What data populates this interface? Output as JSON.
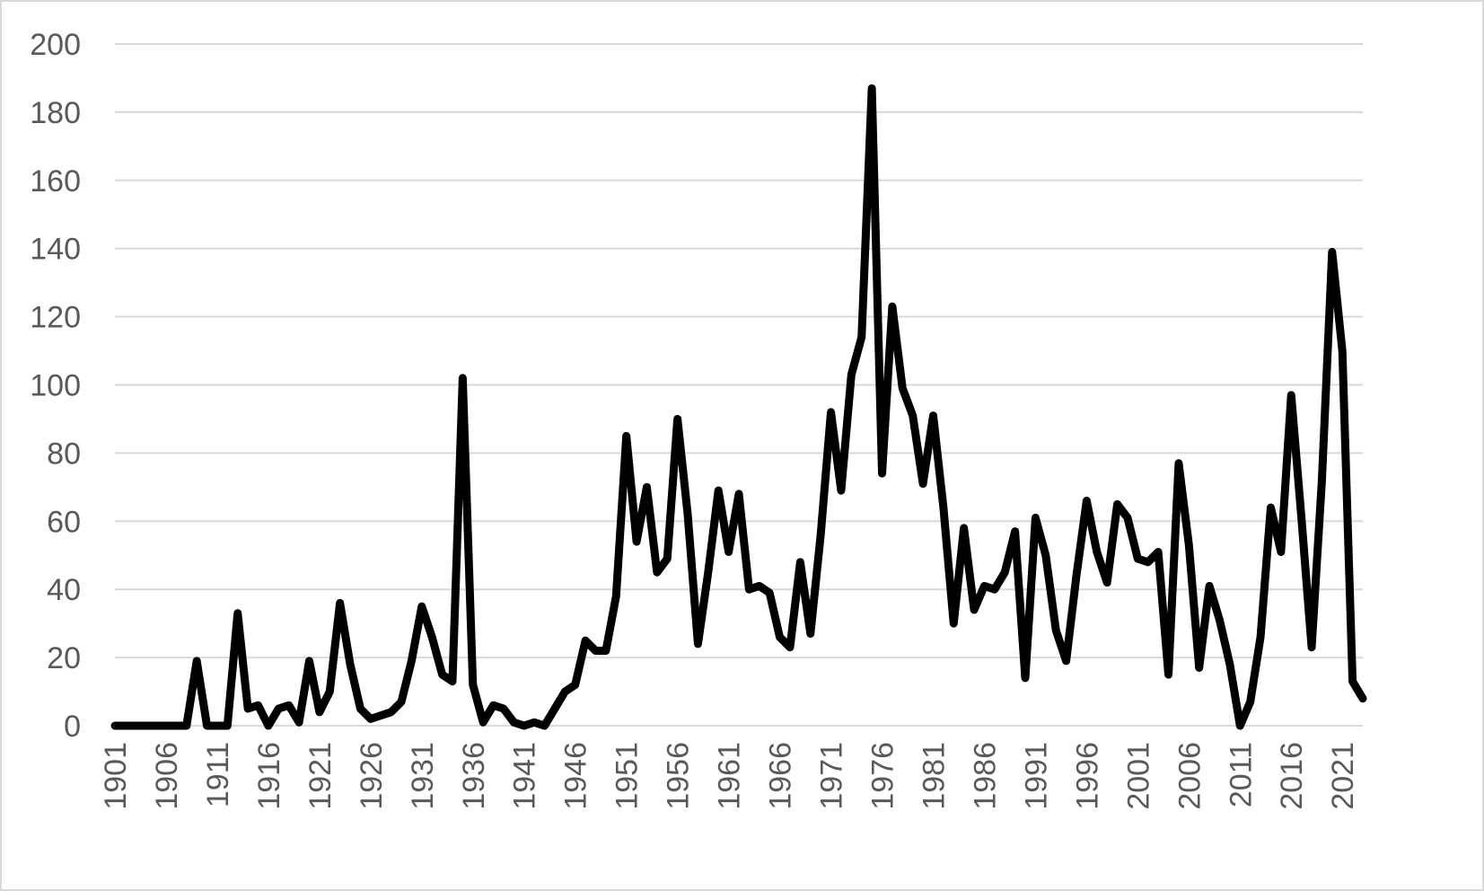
{
  "chart_data": {
    "type": "line",
    "title": "",
    "xlabel": "",
    "ylabel": "",
    "ylim": [
      0,
      200
    ],
    "y_ticks": [
      "0",
      "20",
      "40",
      "60",
      "80",
      "100",
      "120",
      "140",
      "160",
      "180",
      "200"
    ],
    "x_tick_labels": [
      "1901",
      "1906",
      "1911",
      "1916",
      "1921",
      "1926",
      "1931",
      "1936",
      "1941",
      "1946",
      "1951",
      "1956",
      "1961",
      "1966",
      "1971",
      "1976",
      "1981",
      "1986",
      "1991",
      "1996",
      "2001",
      "2006",
      "2011",
      "2016",
      "2021"
    ],
    "grid": true,
    "legend": "none",
    "line_color": "#000000",
    "grid_color": "#d9d9d9",
    "x": [
      1901,
      1902,
      1903,
      1904,
      1905,
      1906,
      1907,
      1908,
      1909,
      1910,
      1911,
      1912,
      1913,
      1914,
      1915,
      1916,
      1917,
      1918,
      1919,
      1920,
      1921,
      1922,
      1923,
      1924,
      1925,
      1926,
      1927,
      1928,
      1929,
      1930,
      1931,
      1932,
      1933,
      1934,
      1935,
      1936,
      1937,
      1938,
      1939,
      1940,
      1941,
      1942,
      1943,
      1944,
      1945,
      1946,
      1947,
      1948,
      1949,
      1950,
      1951,
      1952,
      1953,
      1954,
      1955,
      1956,
      1957,
      1958,
      1959,
      1960,
      1961,
      1962,
      1963,
      1964,
      1965,
      1966,
      1967,
      1968,
      1969,
      1970,
      1971,
      1972,
      1973,
      1974,
      1975,
      1976,
      1977,
      1978,
      1979,
      1980,
      1981,
      1982,
      1983,
      1984,
      1985,
      1986,
      1987,
      1988,
      1989,
      1990,
      1991,
      1992,
      1993,
      1994,
      1995,
      1996,
      1997,
      1998,
      1999,
      2000,
      2001,
      2002,
      2003,
      2004,
      2005,
      2006,
      2007,
      2008,
      2009,
      2010,
      2011,
      2012,
      2013,
      2014,
      2015,
      2016,
      2017,
      2018,
      2019,
      2020,
      2021,
      2022,
      2023
    ],
    "series": [
      {
        "values": [
          0,
          0,
          0,
          0,
          0,
          0,
          0,
          0,
          19,
          0,
          0,
          0,
          33,
          5,
          6,
          0,
          5,
          6,
          1,
          19,
          4,
          10,
          36,
          18,
          5,
          2,
          3,
          4,
          7,
          19,
          35,
          26,
          15,
          13,
          102,
          12,
          1,
          6,
          5,
          1,
          0,
          1,
          0,
          5,
          10,
          12,
          25,
          22,
          22,
          38,
          85,
          54,
          70,
          45,
          49,
          90,
          62,
          24,
          45,
          69,
          51,
          68,
          40,
          41,
          39,
          26,
          23,
          48,
          27,
          56,
          92,
          69,
          103,
          114,
          187,
          74,
          123,
          99,
          91,
          71,
          91,
          64,
          30,
          58,
          34,
          41,
          40,
          45,
          57,
          14,
          61,
          50,
          28,
          19,
          44,
          66,
          51,
          42,
          65,
          61,
          49,
          48,
          51,
          15,
          77,
          53,
          17,
          41,
          31,
          18,
          0,
          7,
          26,
          64,
          51,
          97,
          61,
          23,
          72,
          139,
          110,
          13,
          8
        ]
      }
    ]
  }
}
